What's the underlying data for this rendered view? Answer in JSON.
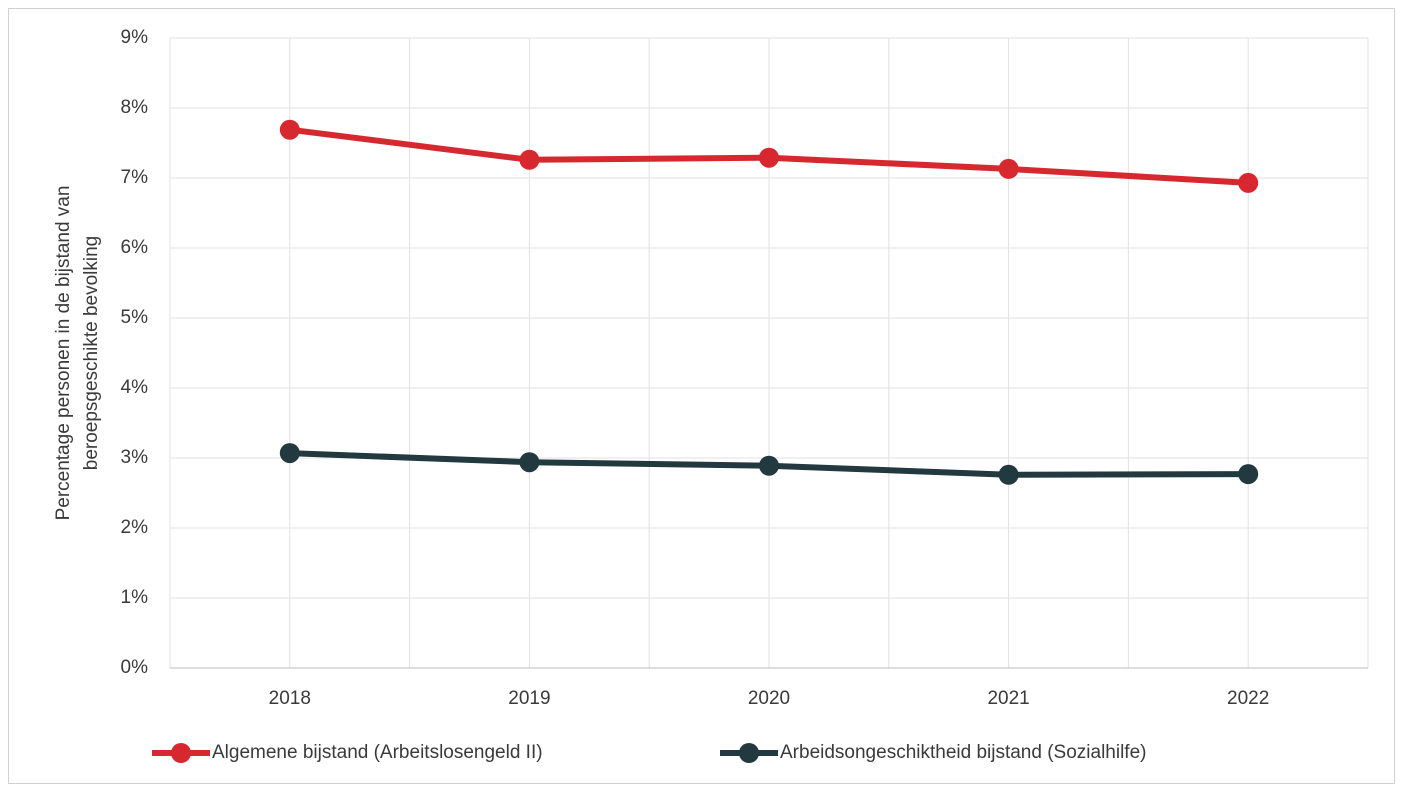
{
  "chart_data": {
    "type": "line",
    "y_label": [
      "Percentage personen in de bijstand van",
      "beroepsgeschikte bevolking"
    ],
    "categories": [
      "2018",
      "2019",
      "2020",
      "2021",
      "2022"
    ],
    "series": [
      {
        "name": "Algemene bijstand (Arbeitslosengeld II)",
        "color": "#d7282f",
        "values": [
          7.69,
          7.26,
          7.29,
          7.13,
          6.93
        ]
      },
      {
        "name": "Arbeidsongeschiktheid bijstand (Sozialhilfe)",
        "color": "#22393f",
        "values": [
          3.07,
          2.94,
          2.89,
          2.76,
          2.77
        ]
      }
    ],
    "ylim": [
      0,
      9
    ],
    "yticks": [
      {
        "value": 0,
        "label": "0%"
      },
      {
        "value": 1,
        "label": "1%"
      },
      {
        "value": 2,
        "label": "2%"
      },
      {
        "value": 3,
        "label": "3%"
      },
      {
        "value": 4,
        "label": "4%"
      },
      {
        "value": 5,
        "label": "5%"
      },
      {
        "value": 6,
        "label": "6%"
      },
      {
        "value": 7,
        "label": "7%"
      },
      {
        "value": 8,
        "label": "8%"
      },
      {
        "value": 9,
        "label": "9%"
      }
    ],
    "grid": true,
    "legend": "bottom"
  }
}
